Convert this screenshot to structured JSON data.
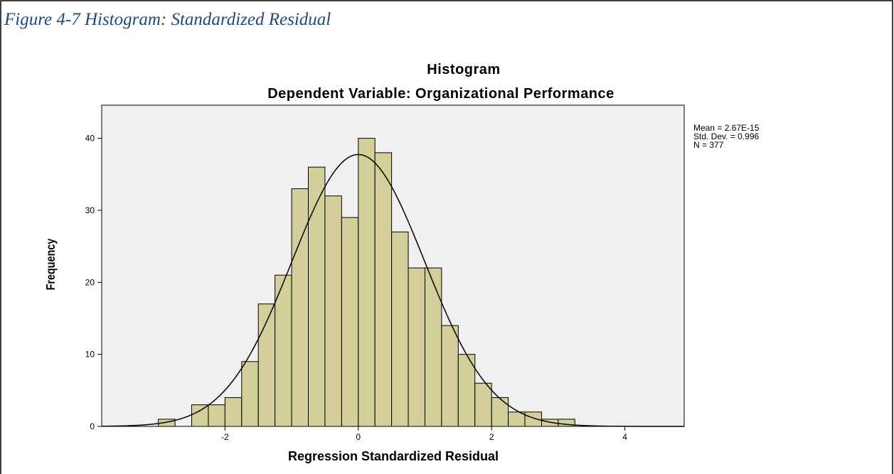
{
  "caption": "Figure 4-7 Histogram: Standardized Residual",
  "chart_data": {
    "type": "histogram",
    "title": "Histogram",
    "subtitle": "Dependent Variable: Organizational Performance",
    "xlabel": "Regression Standardized Residual",
    "ylabel": "Frequency",
    "bins": [
      -3,
      -2.75,
      -2.5,
      -2.25,
      -2,
      -1.75,
      -1.5,
      -1.25,
      -1,
      -0.75,
      -0.5,
      -0.25,
      0,
      0.25,
      0.5,
      0.75,
      1,
      1.25,
      1.5,
      1.75,
      2,
      2.25,
      2.5,
      2.75,
      3,
      3.25
    ],
    "values": [
      1,
      0,
      3,
      3,
      4,
      9,
      17,
      21,
      33,
      36,
      32,
      29,
      40,
      38,
      27,
      22,
      22,
      14,
      10,
      6,
      4,
      2,
      2,
      1,
      1
    ],
    "color": "#d4cf9a",
    "xlim": [
      -3.85,
      4.89
    ],
    "ylim": [
      0,
      44.6
    ],
    "xticks": [
      -2,
      0,
      2,
      4
    ],
    "yticks": [
      0,
      10,
      20,
      30,
      40
    ],
    "stats": [
      {
        "value": 2.67e-15,
        "label": "Mean = 2.67E-15"
      },
      {
        "value": 0.996,
        "label": "Std. Dev. = 0.996"
      },
      {
        "value": 377,
        "label": "N = 377"
      }
    ]
  }
}
